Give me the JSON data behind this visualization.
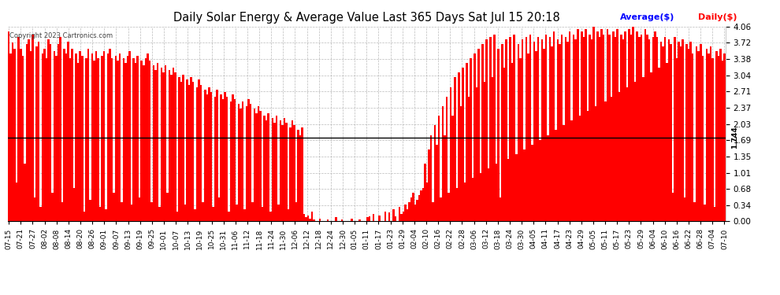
{
  "title": "Daily Solar Energy & Average Value Last 365 Days Sat Jul 15 20:18",
  "copyright": "Copyright 2023 Cartronics.com",
  "legend_avg": "Average($)",
  "legend_daily": "Daily($)",
  "avg_value": 1.744,
  "y_min": 0.0,
  "y_max": 4.06,
  "y_ticks": [
    0.0,
    0.34,
    0.68,
    1.01,
    1.35,
    1.69,
    2.03,
    2.37,
    2.71,
    3.04,
    3.38,
    3.72,
    4.06
  ],
  "bar_color": "#ff0000",
  "avg_line_color": "#000000",
  "background_color": "#ffffff",
  "grid_color": "#aaaaaa",
  "title_color": "#000000",
  "avg_label_color": "#0000ff",
  "daily_label_color": "#ff0000",
  "avg_label_rot_color": "#000000",
  "x_labels": [
    "07-15",
    "07-21",
    "07-27",
    "08-02",
    "08-08",
    "08-14",
    "08-20",
    "08-26",
    "09-01",
    "09-07",
    "09-13",
    "09-19",
    "09-25",
    "10-01",
    "10-07",
    "10-13",
    "10-19",
    "10-25",
    "10-31",
    "11-06",
    "11-12",
    "11-18",
    "11-24",
    "11-30",
    "12-06",
    "12-12",
    "12-18",
    "12-24",
    "12-30",
    "01-05",
    "01-11",
    "01-17",
    "01-23",
    "01-29",
    "02-04",
    "02-10",
    "02-16",
    "02-22",
    "02-28",
    "03-06",
    "03-12",
    "03-18",
    "03-24",
    "03-30",
    "04-05",
    "04-11",
    "04-17",
    "04-23",
    "04-29",
    "05-05",
    "05-11",
    "05-17",
    "05-23",
    "05-29",
    "06-04",
    "06-10",
    "06-16",
    "06-22",
    "06-28",
    "07-04",
    "07-10"
  ],
  "n_days": 365,
  "figsize": [
    9.9,
    3.75
  ],
  "dpi": 100,
  "daily_values": [
    3.95,
    3.5,
    3.72,
    3.6,
    0.8,
    3.85,
    3.6,
    3.45,
    1.2,
    3.7,
    3.8,
    3.55,
    3.9,
    0.5,
    3.65,
    3.75,
    0.3,
    3.5,
    3.6,
    3.4,
    3.8,
    3.7,
    0.6,
    3.55,
    3.45,
    3.7,
    3.85,
    0.4,
    3.6,
    3.5,
    3.75,
    3.4,
    3.6,
    0.7,
    3.5,
    3.3,
    3.55,
    3.45,
    0.2,
    3.4,
    3.6,
    0.45,
    3.5,
    3.35,
    3.55,
    3.4,
    0.3,
    3.45,
    3.55,
    0.25,
    3.5,
    3.6,
    3.4,
    0.6,
    3.45,
    3.35,
    3.5,
    0.4,
    3.4,
    3.3,
    3.45,
    3.55,
    0.35,
    3.4,
    3.3,
    3.45,
    0.5,
    3.35,
    3.25,
    3.4,
    3.5,
    3.35,
    0.4,
    3.25,
    3.15,
    3.3,
    0.3,
    3.2,
    3.1,
    3.25,
    0.6,
    3.15,
    3.05,
    3.2,
    3.1,
    0.2,
    3.0,
    2.9,
    3.05,
    0.35,
    2.95,
    2.85,
    3.0,
    2.9,
    0.25,
    2.8,
    2.95,
    2.85,
    0.4,
    2.75,
    2.65,
    2.8,
    2.7,
    0.3,
    2.6,
    2.75,
    0.5,
    2.65,
    2.55,
    2.7,
    2.6,
    0.2,
    2.5,
    2.65,
    2.55,
    0.35,
    2.45,
    2.35,
    2.5,
    0.25,
    2.4,
    2.55,
    2.45,
    0.4,
    2.35,
    2.25,
    2.4,
    2.3,
    0.3,
    2.2,
    2.1,
    2.25,
    0.2,
    2.15,
    2.05,
    2.2,
    0.35,
    2.1,
    2.0,
    2.15,
    2.05,
    0.25,
    1.95,
    2.1,
    2.0,
    0.4,
    1.9,
    1.8,
    1.95,
    0.15,
    0.08,
    0.12,
    0.05,
    0.2,
    0.03,
    0.0,
    0.0,
    0.06,
    0.0,
    0.0,
    0.0,
    0.04,
    0.0,
    0.0,
    0.0,
    0.08,
    0.0,
    0.0,
    0.03,
    0.0,
    0.0,
    0.0,
    0.0,
    0.06,
    0.0,
    0.0,
    0.0,
    0.04,
    0.0,
    0.0,
    0.0,
    0.08,
    0.1,
    0.0,
    0.15,
    0.0,
    0.0,
    0.12,
    0.0,
    0.0,
    0.2,
    0.0,
    0.18,
    0.0,
    0.25,
    0.1,
    0.0,
    0.3,
    0.15,
    0.2,
    0.35,
    0.25,
    0.4,
    0.5,
    0.6,
    0.35,
    0.45,
    0.55,
    0.65,
    0.7,
    1.2,
    0.8,
    1.5,
    1.8,
    0.4,
    2.0,
    1.6,
    2.2,
    0.5,
    2.4,
    1.8,
    2.6,
    0.6,
    2.8,
    2.2,
    3.0,
    0.7,
    3.1,
    2.4,
    3.2,
    0.8,
    3.3,
    2.6,
    3.4,
    0.9,
    3.5,
    2.8,
    3.6,
    1.0,
    3.7,
    2.9,
    3.8,
    1.1,
    3.85,
    3.0,
    3.9,
    1.2,
    3.6,
    0.5,
    3.7,
    3.2,
    3.8,
    1.3,
    3.85,
    3.3,
    3.9,
    1.4,
    3.7,
    3.4,
    3.8,
    1.5,
    3.85,
    3.5,
    3.9,
    1.6,
    3.75,
    3.55,
    3.85,
    1.7,
    3.8,
    3.6,
    3.9,
    1.8,
    3.85,
    3.65,
    3.95,
    1.9,
    3.8,
    3.7,
    3.9,
    2.0,
    3.85,
    3.75,
    3.95,
    2.1,
    3.9,
    3.8,
    4.0,
    2.2,
    3.95,
    3.85,
    4.0,
    2.3,
    3.9,
    3.8,
    4.05,
    2.4,
    3.95,
    3.85,
    4.0,
    3.9,
    2.5,
    4.0,
    3.9,
    2.6,
    3.95,
    3.85,
    4.0,
    2.7,
    3.9,
    3.8,
    3.95,
    2.8,
    4.0,
    3.9,
    4.05,
    2.9,
    3.95,
    3.85,
    3.9,
    3.0,
    4.0,
    3.9,
    3.8,
    3.1,
    3.85,
    3.95,
    3.85,
    3.2,
    3.75,
    3.65,
    3.85,
    3.3,
    3.8,
    3.7,
    0.6,
    3.85,
    3.4,
    3.75,
    3.65,
    3.8,
    0.5,
    3.7,
    3.6,
    3.75,
    3.5,
    0.4,
    3.65,
    3.55,
    3.7,
    3.45,
    0.35,
    3.6,
    3.5,
    3.65,
    3.4,
    0.3,
    3.55,
    3.45,
    3.6,
    3.35,
    3.5
  ]
}
